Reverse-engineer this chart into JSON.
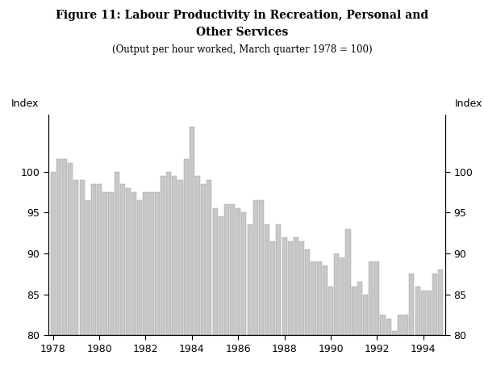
{
  "title_line1": "Figure 11: Labour Productivity in Recreation, Personal and",
  "title_line2": "Other Services",
  "subtitle": "(Output per hour worked, March quarter 1978 = 100)",
  "ylabel_left": "Index",
  "ylabel_right": "Index",
  "ylim": [
    80,
    107
  ],
  "yticks": [
    80,
    85,
    90,
    95,
    100
  ],
  "bar_color": "#c8c8c8",
  "bar_edgecolor": "#999999",
  "background_color": "#ffffff",
  "xtick_labels": [
    "1978",
    "1980",
    "1982",
    "1984",
    "1986",
    "1988",
    "1990",
    "1992",
    "1994"
  ],
  "values": [
    100.0,
    101.5,
    101.5,
    101.0,
    99.0,
    99.0,
    96.5,
    98.5,
    98.5,
    97.5,
    97.5,
    100.0,
    98.5,
    98.0,
    97.5,
    96.5,
    97.5,
    97.5,
    97.5,
    99.5,
    100.0,
    99.5,
    99.0,
    101.5,
    105.5,
    99.5,
    98.5,
    99.0,
    95.5,
    94.5,
    96.0,
    96.0,
    95.5,
    95.0,
    93.5,
    96.5,
    96.5,
    93.5,
    91.5,
    93.5,
    92.0,
    91.5,
    92.0,
    91.5,
    90.5,
    89.0,
    89.0,
    88.5,
    86.0,
    90.0,
    89.5,
    93.0,
    86.0,
    86.5,
    85.0,
    89.0,
    89.0,
    82.5,
    82.0,
    80.5,
    82.5,
    82.5,
    87.5,
    86.0,
    85.5,
    85.5,
    87.5,
    88.0
  ]
}
